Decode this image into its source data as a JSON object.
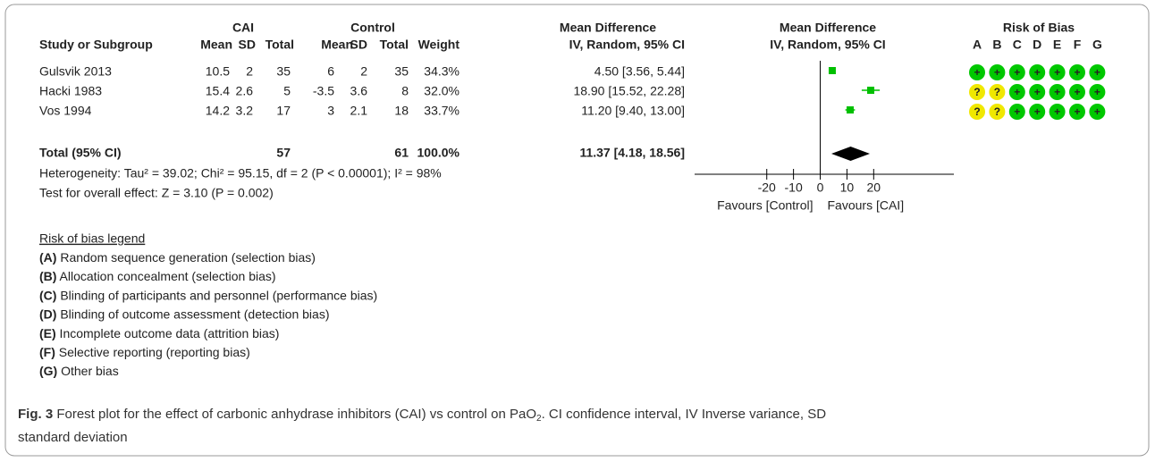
{
  "header": {
    "cai": "CAI",
    "control": "Control",
    "md": "Mean Difference",
    "md_sub": "IV, Random, 95% CI",
    "plot_title": "Mean Difference",
    "plot_sub": "IV, Random, 95% CI",
    "rob_title": "Risk of Bias"
  },
  "columns": [
    "Study or Subgroup",
    "Mean",
    "SD",
    "Total",
    "Mean",
    "SD",
    "Total",
    "Weight",
    "IV, Random, 95% CI"
  ],
  "rob_letters": [
    "A",
    "B",
    "C",
    "D",
    "E",
    "F",
    "G"
  ],
  "rob_colors": {
    "+": "#00c800",
    "?": "#f0e800"
  },
  "studies": [
    {
      "name": "Gulsvik 2013",
      "cai_mean": 10.5,
      "cai_sd": 2,
      "cai_total": 35,
      "ctrl_mean": 6,
      "ctrl_sd": 2,
      "ctrl_total": 35,
      "weight": "34.3%",
      "md_label": "4.50 [3.56, 5.44]",
      "md": 4.5,
      "ci": [
        3.56,
        5.44
      ],
      "rob": [
        "+",
        "+",
        "+",
        "+",
        "+",
        "+",
        "+"
      ]
    },
    {
      "name": "Hacki 1983",
      "cai_mean": 15.4,
      "cai_sd": 2.6,
      "cai_total": 5,
      "ctrl_mean": -3.5,
      "ctrl_sd": 3.6,
      "ctrl_total": 8,
      "weight": "32.0%",
      "md_label": "18.90 [15.52, 22.28]",
      "md": 18.9,
      "ci": [
        15.52,
        22.28
      ],
      "rob": [
        "?",
        "?",
        "+",
        "+",
        "+",
        "+",
        "+"
      ]
    },
    {
      "name": "Vos 1994",
      "cai_mean": 14.2,
      "cai_sd": 3.2,
      "cai_total": 17,
      "ctrl_mean": 3,
      "ctrl_sd": 2.1,
      "ctrl_total": 18,
      "weight": "33.7%",
      "md_label": "11.20 [9.40, 13.00]",
      "md": 11.2,
      "ci": [
        9.4,
        13.0
      ],
      "rob": [
        "?",
        "?",
        "+",
        "+",
        "+",
        "+",
        "+"
      ]
    }
  ],
  "total": {
    "name": "Total (95% CI)",
    "cai_total": 57,
    "ctrl_total": 61,
    "weight": "100.0%",
    "md_label": "11.37 [4.18, 18.56]",
    "md": 11.37,
    "ci": [
      4.18,
      18.56
    ]
  },
  "heterogeneity": "Heterogeneity: Tau² = 39.02; Chi² = 95.15, df = 2 (P < 0.00001); I² = 98%",
  "overall": "Test for overall effect: Z = 3.10 (P = 0.002)",
  "plot": {
    "xlim": [
      -47,
      50
    ],
    "xticks": [
      -20,
      -10,
      0,
      10,
      20
    ],
    "favours_left": "Favours [Control]",
    "favours_right": "Favours [CAI]",
    "color": "#00c000"
  },
  "legend": {
    "title": "Risk of bias legend",
    "items": [
      {
        "letter": "(A)",
        "text": " Random sequence generation (selection bias)"
      },
      {
        "letter": "(B)",
        "text": " Allocation concealment (selection bias)"
      },
      {
        "letter": "(C)",
        "text": " Blinding of participants and personnel (performance bias)"
      },
      {
        "letter": "(D)",
        "text": " Blinding of outcome assessment (detection bias)"
      },
      {
        "letter": "(E)",
        "text": " Incomplete outcome data (attrition bias)"
      },
      {
        "letter": "(F)",
        "text": " Selective reporting (reporting bias)"
      },
      {
        "letter": "(G)",
        "text": " Other bias"
      }
    ]
  },
  "caption": {
    "label": "Fig. 3",
    "before": " Forest plot for the effect of carbonic anhydrase inhibitors (CAI) vs control on PaO",
    "sub": "2",
    "after": ". CI confidence interval, IV Inverse variance, SD",
    "line2": "standard deviation"
  }
}
